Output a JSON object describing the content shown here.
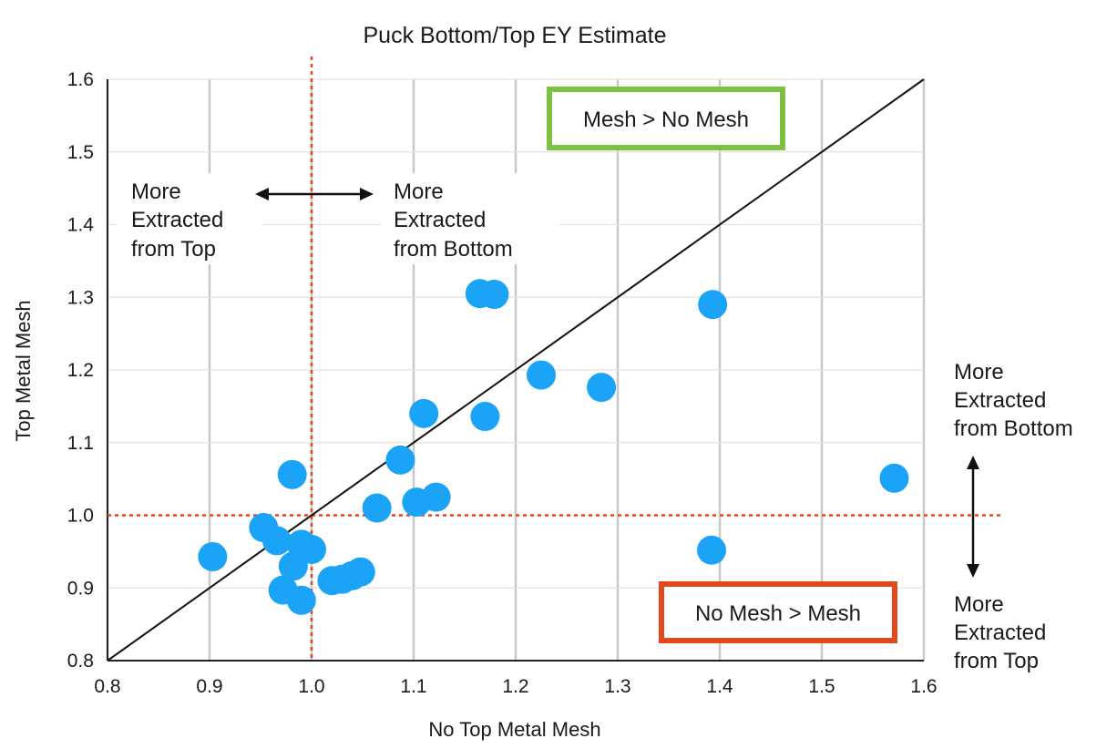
{
  "chart_data": {
    "type": "scatter",
    "title": "Puck Bottom/Top EY Estimate",
    "xlabel": "No Top Metal Mesh",
    "ylabel": "Top Metal Mesh",
    "xlim": [
      0.8,
      1.6
    ],
    "ylim": [
      0.8,
      1.6
    ],
    "xticks": [
      "0.8",
      "0.9",
      "1.0",
      "1.1",
      "1.2",
      "1.3",
      "1.4",
      "1.5",
      "1.6"
    ],
    "yticks": [
      "0.8",
      "0.9",
      "1.0",
      "1.1",
      "1.2",
      "1.3",
      "1.4",
      "1.5",
      "1.6"
    ],
    "grid": "vertical",
    "marker_color": "#1aa3f7",
    "points": [
      {
        "x": 0.903,
        "y": 0.943
      },
      {
        "x": 0.953,
        "y": 0.983
      },
      {
        "x": 0.966,
        "y": 0.965
      },
      {
        "x": 0.972,
        "y": 0.897
      },
      {
        "x": 0.981,
        "y": 1.056
      },
      {
        "x": 0.982,
        "y": 0.93
      },
      {
        "x": 0.99,
        "y": 0.96
      },
      {
        "x": 0.99,
        "y": 0.883
      },
      {
        "x": 1.0,
        "y": 0.953
      },
      {
        "x": 1.02,
        "y": 0.91
      },
      {
        "x": 1.03,
        "y": 0.912
      },
      {
        "x": 1.04,
        "y": 0.917
      },
      {
        "x": 1.048,
        "y": 0.922
      },
      {
        "x": 1.064,
        "y": 1.01
      },
      {
        "x": 1.087,
        "y": 1.076
      },
      {
        "x": 1.103,
        "y": 1.018
      },
      {
        "x": 1.11,
        "y": 1.14
      },
      {
        "x": 1.122,
        "y": 1.025
      },
      {
        "x": 1.165,
        "y": 1.305
      },
      {
        "x": 1.17,
        "y": 1.136
      },
      {
        "x": 1.179,
        "y": 1.304
      },
      {
        "x": 1.225,
        "y": 1.193
      },
      {
        "x": 1.284,
        "y": 1.176
      },
      {
        "x": 1.392,
        "y": 0.952
      },
      {
        "x": 1.393,
        "y": 1.29
      },
      {
        "x": 1.571,
        "y": 1.051
      }
    ],
    "reference_lines": {
      "diagonal": {
        "from": [
          0.8,
          0.8
        ],
        "to": [
          1.6,
          1.6
        ],
        "color": "#111111"
      },
      "vertical": {
        "x": 1.0,
        "color": "#e0482a"
      },
      "horizontal": {
        "y": 1.0,
        "color": "#e0482a"
      }
    },
    "annotations": {
      "top_left": [
        "More",
        "Extracted",
        "from Top"
      ],
      "top_right": [
        "More",
        "Extracted",
        "from Bottom"
      ],
      "right_upper": [
        "More",
        "Extracted",
        "from Bottom"
      ],
      "right_lower": [
        "More",
        "Extracted",
        "from Top"
      ],
      "mesh_box": {
        "text": "Mesh > No Mesh",
        "color": "#7cc142"
      },
      "no_mesh_box": {
        "text": "No Mesh > Mesh",
        "color": "#e04a1c"
      }
    }
  }
}
